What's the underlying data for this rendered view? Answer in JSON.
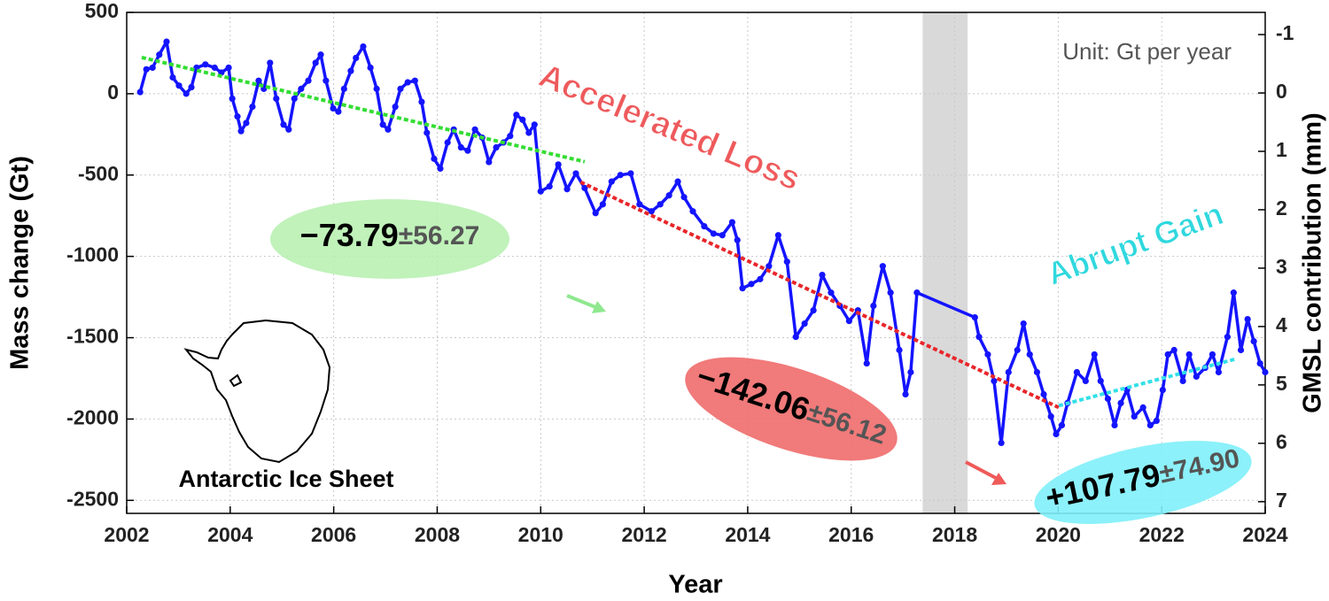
{
  "chart_data": {
    "type": "line",
    "x_label": "Year",
    "y_label": "Mass change (Gt)",
    "y2_label": "GMSL contribution (mm)",
    "unit_note": "Unit: Gt per year",
    "region_label": "Antarctic Ice Sheet",
    "xlim": [
      2002,
      2024
    ],
    "ylim": [
      -2580,
      500
    ],
    "y2lim": [
      7.2,
      -1.38
    ],
    "xticks": [
      2002,
      2004,
      2006,
      2008,
      2010,
      2012,
      2014,
      2016,
      2018,
      2020,
      2022,
      2024
    ],
    "yticks": [
      500,
      0,
      -500,
      -1000,
      -1500,
      -2000,
      -2500
    ],
    "y2ticks": [
      -1,
      0,
      1,
      2,
      3,
      4,
      5,
      6,
      7
    ],
    "grid": true,
    "gap_band": {
      "x": [
        2017.38,
        2018.25
      ],
      "color": "#d9d9d9"
    },
    "series": [
      {
        "color": "#1414ff",
        "x": [
          2002.26,
          2002.38,
          2002.5,
          2002.63,
          2002.77,
          2002.89,
          2003.01,
          2003.15,
          2003.25,
          2003.35,
          2003.52,
          2003.7,
          2003.83,
          2003.97,
          2004.04,
          2004.14,
          2004.21,
          2004.31,
          2004.43,
          2004.55,
          2004.65,
          2004.77,
          2004.89,
          2005.03,
          2005.13,
          2005.24,
          2005.37,
          2005.51,
          2005.65,
          2005.75,
          2005.85,
          2005.99,
          2006.09,
          2006.2,
          2006.33,
          2006.43,
          2006.57,
          2006.71,
          2006.83,
          2006.95,
          2007.05,
          2007.19,
          2007.29,
          2007.43,
          2007.57,
          2007.7,
          2007.8,
          2007.94,
          2008.06,
          2008.2,
          2008.32,
          2008.46,
          2008.59,
          2008.73,
          2008.87,
          2009.0,
          2009.14,
          2009.28,
          2009.41,
          2009.53,
          2009.65,
          2009.77,
          2009.88,
          2010.0,
          2010.17,
          2010.34,
          2010.51,
          2010.68,
          2010.85,
          2011.06,
          2011.2,
          2011.37,
          2011.54,
          2011.74,
          2011.91,
          2012.14,
          2012.31,
          2012.48,
          2012.65,
          2012.77,
          2012.94,
          2013.16,
          2013.34,
          2013.51,
          2013.7,
          2013.8,
          2013.9,
          2014.07,
          2014.24,
          2014.41,
          2014.59,
          2014.76,
          2014.93,
          2015.1,
          2015.27,
          2015.44,
          2015.61,
          2015.78,
          2015.96,
          2016.13,
          2016.3,
          2016.43,
          2016.61,
          2016.76,
          2016.93,
          2017.05,
          2017.15,
          2017.27,
          2018.39,
          2018.47,
          2018.64,
          2018.76,
          2018.9,
          2019.04,
          2019.21,
          2019.33,
          2019.45,
          2019.59,
          2019.72,
          2019.86,
          2019.96,
          2020.07,
          2020.18,
          2020.36,
          2020.53,
          2020.7,
          2020.82,
          2020.96,
          2021.09,
          2021.21,
          2021.33,
          2021.47,
          2021.64,
          2021.78,
          2021.9,
          2022.02,
          2022.12,
          2022.24,
          2022.41,
          2022.53,
          2022.67,
          2022.84,
          2022.98,
          2023.1,
          2023.27,
          2023.39,
          2023.53,
          2023.66,
          2023.78,
          2023.9,
          2024.0
        ],
        "values": [
          10,
          150,
          160,
          240,
          320,
          100,
          50,
          0,
          40,
          160,
          180,
          160,
          130,
          160,
          -30,
          -140,
          -230,
          -180,
          -80,
          80,
          30,
          190,
          -30,
          -190,
          -220,
          -30,
          30,
          80,
          190,
          240,
          80,
          -90,
          -110,
          30,
          140,
          220,
          290,
          160,
          30,
          -190,
          -220,
          -80,
          30,
          70,
          80,
          -50,
          -240,
          -400,
          -460,
          -300,
          -220,
          -330,
          -350,
          -220,
          -270,
          -420,
          -330,
          -300,
          -260,
          -130,
          -160,
          -240,
          -190,
          -600,
          -570,
          -435,
          -587,
          -490,
          -580,
          -734,
          -680,
          -540,
          -500,
          -490,
          -680,
          -723,
          -680,
          -625,
          -540,
          -636,
          -723,
          -815,
          -860,
          -870,
          -790,
          -900,
          -1196,
          -1170,
          -1140,
          -1060,
          -870,
          -1033,
          -1495,
          -1413,
          -1332,
          -1114,
          -1223,
          -1304,
          -1397,
          -1332,
          -1658,
          -1304,
          -1060,
          -1223,
          -1576,
          -1848,
          -1712,
          -1223,
          -1375,
          -1495,
          -1603,
          -1766,
          -2147,
          -1712,
          -1576,
          -1413,
          -1603,
          -1712,
          -1848,
          -1984,
          -2093,
          -2038,
          -1902,
          -1712,
          -1766,
          -1603,
          -1766,
          -1875,
          -2038,
          -1902,
          -1821,
          -1984,
          -1929,
          -2038,
          -2011,
          -1821,
          -1603,
          -1576,
          -1766,
          -1603,
          -1739,
          -1685,
          -1603,
          -1712,
          -1495,
          -1223,
          -1576,
          -1386,
          -1522,
          -1658,
          -1712
        ]
      }
    ],
    "trends": [
      {
        "color": "#33dd33",
        "x": [
          2002.29,
          2010.85
        ],
        "values": [
          223,
          -418
        ]
      },
      {
        "color": "#e8262a",
        "x": [
          2010.77,
          2020.01
        ],
        "values": [
          -543,
          -1929
        ]
      },
      {
        "color": "#33e0e8",
        "x": [
          2020.01,
          2023.44
        ],
        "values": [
          -1918,
          -1630
        ]
      }
    ],
    "phase_labels": [
      "Accelerated Loss",
      "Abrupt Gain"
    ],
    "rates": [
      {
        "rate": "−73.79",
        "error": "±56.27"
      },
      {
        "rate": "−142.06",
        "error": "±56.12"
      },
      {
        "rate": "+107.79",
        "error": "±74.90"
      }
    ]
  }
}
